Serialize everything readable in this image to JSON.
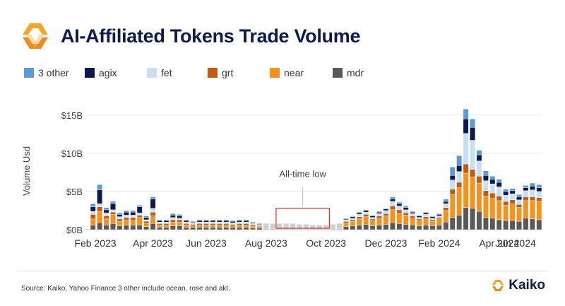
{
  "header": {
    "title": "AI-Affiliated Tokens Trade Volume",
    "logo_icon": "kaiko-logo-icon"
  },
  "legend": [
    {
      "label": "3 other",
      "color": "#5b9bd5"
    },
    {
      "label": "agix",
      "color": "#0d1b4c"
    },
    {
      "label": "fet",
      "color": "#c8e0f4"
    },
    {
      "label": "grt",
      "color": "#c55a11"
    },
    {
      "label": "near",
      "color": "#f5921e"
    },
    {
      "label": "mdr",
      "color": "#595959"
    }
  ],
  "footer": {
    "source": "Source: Kaiko, Yahoo Finance 3 other include ocean, rose and akt.",
    "brand": "Kaiko",
    "brand_icon": "kaiko-logo-icon"
  },
  "chart_data": {
    "type": "bar",
    "stacked": true,
    "title": "AI-Affiliated Tokens Trade Volume",
    "xlabel": "",
    "ylabel": "Volume Usd",
    "ylim": [
      0,
      16
    ],
    "y_ticks": [
      {
        "value": 0,
        "label": "$0B"
      },
      {
        "value": 5,
        "label": "$5B"
      },
      {
        "value": 10,
        "label": "$10B"
      },
      {
        "value": 15,
        "label": "$15B"
      }
    ],
    "x_tick_labels": [
      "Feb 2023",
      "Apr 2023",
      "Jun 2023",
      "Aug 2023",
      "Oct 2023",
      "Dec 2023",
      "Feb 2024",
      "Apr 2024",
      "Jun 2024"
    ],
    "x_tick_weeks": [
      0,
      9,
      17,
      26,
      35,
      44,
      52,
      61,
      69
    ],
    "grid": "horizontal",
    "legend_position": "top",
    "annotation": {
      "text": "All-time low",
      "weeks": [
        28,
        36
      ],
      "y_range": [
        0,
        2.8
      ]
    },
    "series_order": [
      "mdr",
      "near",
      "grt",
      "fet",
      "agix",
      "3 other"
    ],
    "colors": [
      "#595959",
      "#f5921e",
      "#c55a11",
      "#c8e0f4",
      "#0d1b4c",
      "#5b9bd5"
    ],
    "low_volume_color": "#d0d0d0",
    "weeks": [
      [
        0.6,
        0.8,
        0.6,
        0.4,
        0.6,
        0.4
      ],
      [
        0.9,
        1.5,
        0.6,
        0.4,
        1.8,
        0.7
      ],
      [
        0.6,
        0.8,
        0.4,
        0.4,
        0.4,
        0.3
      ],
      [
        0.8,
        1.2,
        0.3,
        0.3,
        0.8,
        0.3
      ],
      [
        0.5,
        0.6,
        0.3,
        0.3,
        0.3,
        0.2
      ],
      [
        0.6,
        0.6,
        0.4,
        0.3,
        0.4,
        0.2
      ],
      [
        0.6,
        0.6,
        0.4,
        0.3,
        0.4,
        0.2
      ],
      [
        0.6,
        1.0,
        0.3,
        0.3,
        0.8,
        0.2
      ],
      [
        0.4,
        0.4,
        0.3,
        0.2,
        0.3,
        0.2
      ],
      [
        0.8,
        1.0,
        0.5,
        0.5,
        1.2,
        0.3
      ],
      [
        0.3,
        0.3,
        0.2,
        0.2,
        0.2,
        0.1
      ],
      [
        0.3,
        0.3,
        0.2,
        0.2,
        0.2,
        0.1
      ],
      [
        0.5,
        0.5,
        0.3,
        0.3,
        0.3,
        0.2
      ],
      [
        0.5,
        0.5,
        0.3,
        0.2,
        0.3,
        0.2
      ],
      [
        0.3,
        0.3,
        0.2,
        0.2,
        0.2,
        0.1
      ],
      [
        0.3,
        0.2,
        0.2,
        0.2,
        0.1,
        0.1
      ],
      [
        0.3,
        0.3,
        0.2,
        0.2,
        0.2,
        0.1
      ],
      [
        0.3,
        0.3,
        0.2,
        0.2,
        0.2,
        0.1
      ],
      [
        0.3,
        0.3,
        0.2,
        0.2,
        0.2,
        0.1
      ],
      [
        0.3,
        0.3,
        0.2,
        0.2,
        0.2,
        0.1
      ],
      [
        0.3,
        0.3,
        0.2,
        0.2,
        0.2,
        0.1
      ],
      [
        0.3,
        0.2,
        0.2,
        0.2,
        0.2,
        0.1
      ],
      [
        0.3,
        0.3,
        0.2,
        0.2,
        0.2,
        0.1
      ],
      [
        0.3,
        0.3,
        0.2,
        0.2,
        0.2,
        0.1
      ],
      [
        0.2,
        0.2,
        0.2,
        0.2,
        0.1,
        0.1
      ],
      [
        0.2,
        0.2,
        0.1,
        0.1,
        0.1,
        0.1
      ],
      [
        0.2,
        0.2,
        0.1,
        0.1,
        0.1,
        0.1
      ],
      [
        0.2,
        0.2,
        0.1,
        0.1,
        0.1,
        0.1
      ],
      [
        0.2,
        0.2,
        0.1,
        0.1,
        0.1,
        0.1
      ],
      [
        0.2,
        0.2,
        0.1,
        0.1,
        0.1,
        0.1
      ],
      [
        0.2,
        0.2,
        0.1,
        0.1,
        0.1,
        0.1
      ],
      [
        0.2,
        0.1,
        0.1,
        0.1,
        0.1,
        0.1
      ],
      [
        0.2,
        0.1,
        0.1,
        0.1,
        0.1,
        0.1
      ],
      [
        0.1,
        0.1,
        0.1,
        0.1,
        0.1,
        0.1
      ],
      [
        0.1,
        0.1,
        0.1,
        0.1,
        0.1,
        0.1
      ],
      [
        0.1,
        0.1,
        0.1,
        0.1,
        0.1,
        0.1
      ],
      [
        0.2,
        0.1,
        0.1,
        0.1,
        0.1,
        0.1
      ],
      [
        0.2,
        0.2,
        0.1,
        0.1,
        0.1,
        0.1
      ],
      [
        0.4,
        0.5,
        0.2,
        0.2,
        0.1,
        0.1
      ],
      [
        0.5,
        0.6,
        0.2,
        0.2,
        0.2,
        0.1
      ],
      [
        0.6,
        0.8,
        0.3,
        0.3,
        0.2,
        0.1
      ],
      [
        0.7,
        1.0,
        0.3,
        0.3,
        0.2,
        0.1
      ],
      [
        0.5,
        0.7,
        0.2,
        0.2,
        0.2,
        0.1
      ],
      [
        0.6,
        0.9,
        0.3,
        0.3,
        0.2,
        0.1
      ],
      [
        0.7,
        1.1,
        0.3,
        0.4,
        0.2,
        0.1
      ],
      [
        0.9,
        1.7,
        0.5,
        0.6,
        0.3,
        0.3
      ],
      [
        0.8,
        1.4,
        0.4,
        0.5,
        0.3,
        0.2
      ],
      [
        0.7,
        1.2,
        0.3,
        0.4,
        0.3,
        0.2
      ],
      [
        0.6,
        0.9,
        0.3,
        0.3,
        0.2,
        0.1
      ],
      [
        0.5,
        0.7,
        0.2,
        0.2,
        0.2,
        0.1
      ],
      [
        0.6,
        0.8,
        0.3,
        0.3,
        0.2,
        0.1
      ],
      [
        0.5,
        0.6,
        0.2,
        0.2,
        0.2,
        0.1
      ],
      [
        0.6,
        0.8,
        0.2,
        0.2,
        0.2,
        0.1
      ],
      [
        1.0,
        1.5,
        0.4,
        0.5,
        0.3,
        0.3
      ],
      [
        1.6,
        3.0,
        0.7,
        1.2,
        0.6,
        1.1
      ],
      [
        1.9,
        3.6,
        0.7,
        1.4,
        0.8,
        1.3
      ],
      [
        2.9,
        4.5,
        1.2,
        4.0,
        1.9,
        1.3
      ],
      [
        2.8,
        4.1,
        1.0,
        3.8,
        1.7,
        1.1
      ],
      [
        2.4,
        3.7,
        0.9,
        2.0,
        0.8,
        0.6
      ],
      [
        1.6,
        2.8,
        0.7,
        1.3,
        0.7,
        0.6
      ],
      [
        1.5,
        2.6,
        0.7,
        1.2,
        0.6,
        0.4
      ],
      [
        1.3,
        2.5,
        0.6,
        1.2,
        0.6,
        0.4
      ],
      [
        1.2,
        2.0,
        0.5,
        0.8,
        0.5,
        0.3
      ],
      [
        1.2,
        2.2,
        0.5,
        0.8,
        0.4,
        0.3
      ],
      [
        1.1,
        1.8,
        0.4,
        0.6,
        0.4,
        0.3
      ],
      [
        1.5,
        2.3,
        0.5,
        0.8,
        0.4,
        0.3
      ],
      [
        1.4,
        2.4,
        0.5,
        0.9,
        0.5,
        0.4
      ],
      [
        1.3,
        2.4,
        0.5,
        0.8,
        0.5,
        0.4
      ]
    ]
  }
}
